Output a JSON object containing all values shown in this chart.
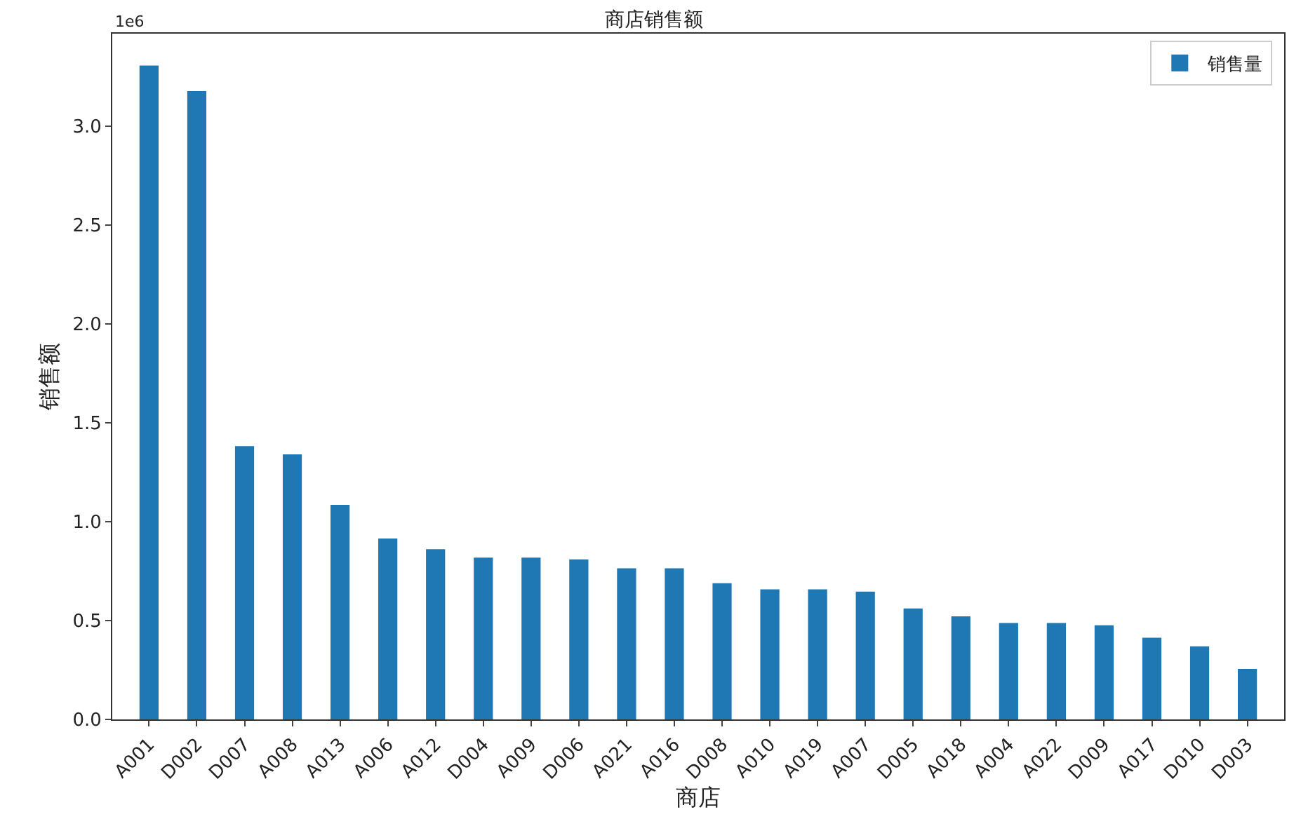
{
  "chart_data": {
    "type": "bar",
    "title": "商店销售额",
    "xlabel": "商店",
    "ylabel": "销售额",
    "categories": [
      "A001",
      "D002",
      "D007",
      "A008",
      "A013",
      "A006",
      "A012",
      "D004",
      "A009",
      "D006",
      "A021",
      "A016",
      "D008",
      "A010",
      "A019",
      "A007",
      "D005",
      "A018",
      "A004",
      "A022",
      "D009",
      "A017",
      "D010",
      "D003"
    ],
    "series": [
      {
        "name": "销售量",
        "color": "#1f77b4",
        "values": [
          3.307,
          3.177,
          1.382,
          1.34,
          1.085,
          0.915,
          0.861,
          0.818,
          0.818,
          0.809,
          0.764,
          0.764,
          0.689,
          0.658,
          0.658,
          0.646,
          0.561,
          0.521,
          0.488,
          0.488,
          0.476,
          0.413,
          0.37,
          0.255
        ]
      }
    ],
    "ylim": [
      0,
      3.468
    ],
    "yticks": [
      {
        "value": 0,
        "label": "0.0"
      },
      0.5,
      {
        "value": 1,
        "label": "1.0"
      },
      1.5,
      {
        "value": 2,
        "label": "2.0"
      },
      2.5,
      {
        "value": 3,
        "label": "3.0"
      }
    ],
    "annotations": [
      "1e6"
    ],
    "legend": "top right"
  }
}
